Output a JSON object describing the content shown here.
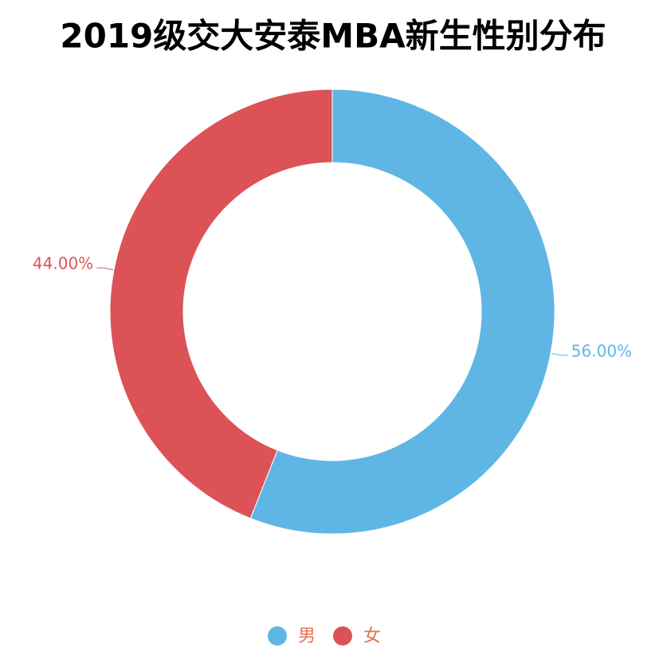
{
  "chart_data": {
    "type": "pie",
    "title": "2019级交大安泰MBA新生性别分布",
    "categories": [
      "男",
      "女"
    ],
    "values": [
      56,
      44
    ],
    "value_labels": [
      "56.00%",
      "44.00%"
    ],
    "colors": [
      "#5fb6e5",
      "#db5356"
    ],
    "donut": true,
    "legend": "bottom"
  }
}
